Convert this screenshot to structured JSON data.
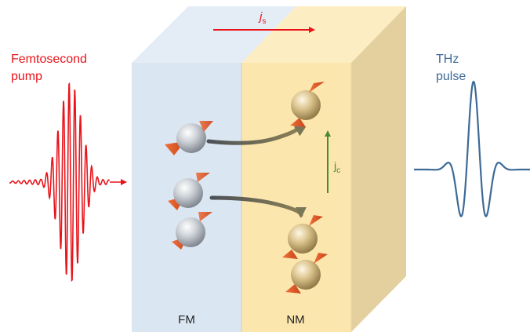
{
  "labels": {
    "pump_line1": "Femtosecond",
    "pump_line2": "pump",
    "thz_line1": "THz",
    "thz_line2": "pulse",
    "spin_current": "j",
    "spin_current_sub": "s",
    "charge_current": "j",
    "charge_current_sub": "c",
    "fm_layer": "FM",
    "nm_layer": "NM"
  },
  "colors": {
    "pump": "#e8141b",
    "thz": "#3d6a96",
    "fm_layer": "#dae6f2",
    "nm_layer": "#fbe6ad",
    "spin_arrow": "#e8141b",
    "charge_arrow": "#4a8a35",
    "electron_fm": "#c8ccd2",
    "electron_nm": "#d8c08a",
    "spin_cone": "#e8632a",
    "transfer_arrow": "#7a7658"
  },
  "icons": {
    "electron": "sphere-with-spin-cone-icon",
    "transfer": "curved-arrow-icon"
  }
}
